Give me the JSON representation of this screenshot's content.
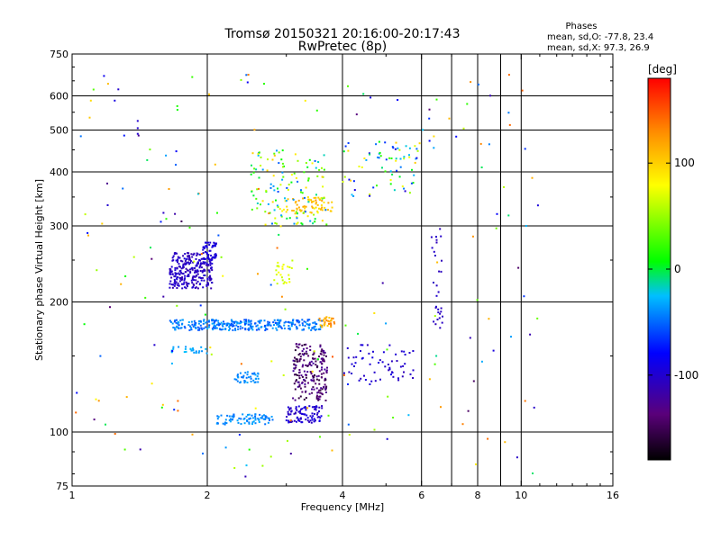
{
  "chart_data": {
    "type": "scatter",
    "title": "Tromsø 20150321 20:16:00-20:17:43",
    "subtitle": "RwPretec (8p)",
    "xlabel": "Frequency [MHz]",
    "ylabel": "Stationary phase Virtual Height [km]",
    "x_scale": "log",
    "y_scale": "log",
    "xlim": [
      1,
      16
    ],
    "ylim": [
      75,
      750
    ],
    "x_ticks": [
      1,
      2,
      4,
      6,
      8,
      10,
      16
    ],
    "y_ticks": [
      75,
      100,
      200,
      300,
      400,
      500,
      600,
      750
    ],
    "x_gridlines": [
      2,
      4,
      6,
      7,
      8,
      9,
      10
    ],
    "y_gridlines": [
      100,
      200,
      300,
      400,
      500,
      600
    ],
    "grid": true,
    "legend": {
      "title": "Phases",
      "lines": [
        "mean, sd,O: -77.8, 23.4",
        "mean, sd,X:  97.3, 26.9"
      ],
      "placement": "top-right"
    },
    "colorbar": {
      "label": "[deg]",
      "range": [
        -180,
        180
      ],
      "ticks": [
        -100,
        0,
        100
      ],
      "colors": [
        "#000000",
        "#5a007a",
        "#0000ff",
        "#00bfff",
        "#00ff00",
        "#ffff00",
        "#ff8c00",
        "#ff0000"
      ]
    },
    "clusters": [
      {
        "f": [
          1.65,
          2.05
        ],
        "h": [
          215,
          260
        ],
        "phase": [
          -115,
          -95
        ],
        "n": 260
      },
      {
        "f": [
          1.95,
          2.1
        ],
        "h": [
          245,
          275
        ],
        "phase": [
          -100,
          -90
        ],
        "n": 50
      },
      {
        "f": [
          1.65,
          3.6
        ],
        "h": [
          172,
          182
        ],
        "phase": [
          -60,
          -30
        ],
        "n": 300
      },
      {
        "f": [
          3.55,
          3.85
        ],
        "h": [
          175,
          185
        ],
        "phase": [
          100,
          140
        ],
        "n": 30
      },
      {
        "f": [
          3.1,
          3.7
        ],
        "h": [
          118,
          160
        ],
        "phase": [
          -160,
          -120
        ],
        "n": 200
      },
      {
        "f": [
          3.0,
          3.6
        ],
        "h": [
          105,
          115
        ],
        "phase": [
          -110,
          -90
        ],
        "n": 90
      },
      {
        "f": [
          2.1,
          2.8
        ],
        "h": [
          104,
          110
        ],
        "phase": [
          -50,
          -30
        ],
        "n": 80
      },
      {
        "f": [
          2.3,
          2.6
        ],
        "h": [
          130,
          138
        ],
        "phase": [
          -50,
          -30
        ],
        "n": 40
      },
      {
        "f": [
          1.65,
          2.0
        ],
        "h": [
          152,
          158
        ],
        "phase": [
          -40,
          -25
        ],
        "n": 25
      },
      {
        "f": [
          3.0,
          3.8
        ],
        "h": [
          320,
          350
        ],
        "phase": [
          90,
          120
        ],
        "n": 60
      },
      {
        "f": [
          2.8,
          3.1
        ],
        "h": [
          220,
          250
        ],
        "phase": [
          60,
          80
        ],
        "n": 25
      },
      {
        "f": [
          2.5,
          3.7
        ],
        "h": [
          300,
          450
        ],
        "phase": [
          -60,
          110
        ],
        "n": 140
      },
      {
        "f": [
          4.0,
          6.0
        ],
        "h": [
          350,
          470
        ],
        "phase": [
          -100,
          110
        ],
        "n": 70
      },
      {
        "f": [
          4.0,
          5.8
        ],
        "h": [
          130,
          160
        ],
        "phase": [
          -110,
          -90
        ],
        "n": 60
      },
      {
        "f": [
          6.3,
          6.7
        ],
        "h": [
          170,
          300
        ],
        "phase": [
          -110,
          -100
        ],
        "n": 30
      },
      {
        "f": [
          1.0,
          11.0
        ],
        "h": [
          78,
          680
        ],
        "phase": [
          -150,
          150
        ],
        "n": 200
      }
    ],
    "isolated_points": [
      {
        "f": 1.4,
        "h": 525,
        "phase": -100
      },
      {
        "f": 1.4,
        "h": 505,
        "phase": -100
      },
      {
        "f": 1.4,
        "h": 490,
        "phase": -100
      },
      {
        "f": 1.2,
        "h": 335,
        "phase": -100
      },
      {
        "f": 1.72,
        "h": 118,
        "phase": 140
      },
      {
        "f": 1.72,
        "h": 112,
        "phase": 140
      }
    ],
    "annotations": []
  }
}
